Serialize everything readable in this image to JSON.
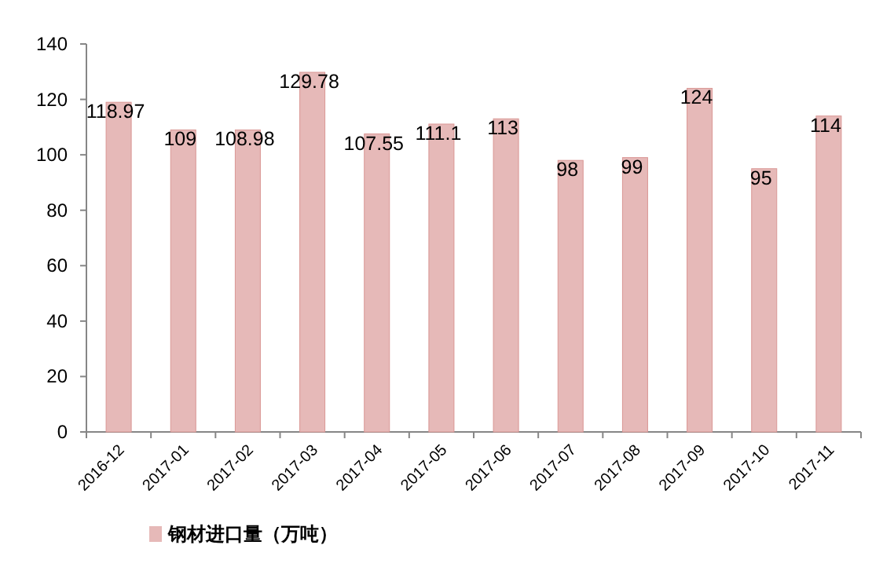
{
  "chart_data": {
    "type": "bar",
    "categories": [
      "2016-12",
      "2017-01",
      "2017-02",
      "2017-03",
      "2017-04",
      "2017-05",
      "2017-06",
      "2017-07",
      "2017-08",
      "2017-09",
      "2017-10",
      "2017-11"
    ],
    "series": [
      {
        "name": "钢材进口量（万吨）",
        "color": "#e6b9b8",
        "values": [
          118.97,
          109,
          108.98,
          129.78,
          107.55,
          111.1,
          113,
          98,
          99,
          124,
          95,
          114
        ]
      }
    ],
    "ylim": [
      0,
      140
    ],
    "yticks": [
      0,
      20,
      40,
      60,
      80,
      100,
      120,
      140
    ],
    "data_labels": true,
    "legend": "bottom"
  }
}
